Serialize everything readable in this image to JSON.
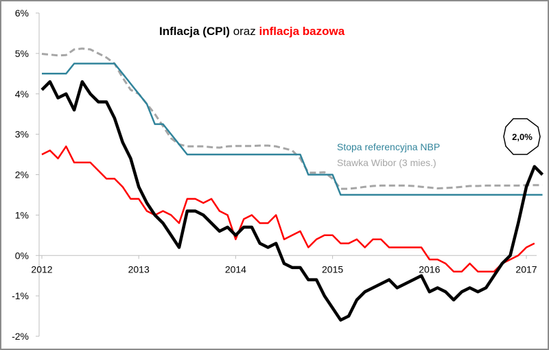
{
  "chart_data": {
    "type": "line",
    "title": {
      "part1": "Inflacja (CPI)",
      "part2": " oraz ",
      "part3": "inflacja bazowa",
      "part1_color": "#000000",
      "part3_color": "#ff0000"
    },
    "xlabel": "",
    "ylabel": "",
    "ylim": [
      -2,
      6
    ],
    "yticks": [
      6,
      5,
      4,
      3,
      2,
      1,
      0,
      -1,
      -2
    ],
    "ytick_labels": [
      "6%",
      "5%",
      "4%",
      "3%",
      "2%",
      "1%",
      "0%",
      "-1%",
      "-2%"
    ],
    "xticks": [
      2012,
      2013,
      2014,
      2015,
      2016,
      2017
    ],
    "xtick_labels": [
      "2012",
      "2013",
      "2014",
      "2015",
      "2016",
      "2017"
    ],
    "x_start": "2012-01",
    "x_step": "month",
    "grid": false,
    "legend": [
      {
        "name": "Stopa referencyjna NBP",
        "color": "#31849b",
        "placement": "right"
      },
      {
        "name": "Stawka Wibor (3 mies.)",
        "color": "#a6a6a6",
        "placement": "right"
      }
    ],
    "annotation": {
      "text": "2,0%",
      "points_to": "CPI last value"
    },
    "series": [
      {
        "name": "Inflacja (CPI)",
        "color": "#000000",
        "style": "solid-thick",
        "values": [
          4.1,
          4.3,
          3.9,
          4.0,
          3.6,
          4.3,
          4.0,
          3.8,
          3.8,
          3.4,
          2.8,
          2.4,
          1.7,
          1.3,
          1.0,
          0.8,
          0.5,
          0.2,
          1.1,
          1.1,
          1.0,
          0.8,
          0.6,
          0.7,
          0.5,
          0.7,
          0.7,
          0.3,
          0.2,
          0.3,
          -0.2,
          -0.3,
          -0.3,
          -0.6,
          -0.6,
          -1.0,
          -1.3,
          -1.6,
          -1.5,
          -1.1,
          -0.9,
          -0.8,
          -0.7,
          -0.6,
          -0.8,
          -0.7,
          -0.6,
          -0.5,
          -0.9,
          -0.8,
          -0.9,
          -1.1,
          -0.9,
          -0.8,
          -0.9,
          -0.8,
          -0.5,
          -0.2,
          0.0,
          0.8,
          1.7,
          2.2,
          2.0
        ]
      },
      {
        "name": "Inflacja bazowa",
        "color": "#ff0000",
        "style": "solid",
        "values": [
          2.5,
          2.6,
          2.4,
          2.7,
          2.3,
          2.3,
          2.3,
          2.1,
          1.9,
          1.9,
          1.7,
          1.4,
          1.4,
          1.1,
          1.0,
          1.1,
          1.0,
          0.8,
          1.4,
          1.4,
          1.3,
          1.4,
          1.1,
          1.0,
          0.4,
          0.9,
          1.0,
          0.8,
          0.8,
          1.0,
          0.4,
          0.5,
          0.6,
          0.2,
          0.4,
          0.5,
          0.5,
          0.3,
          0.3,
          0.4,
          0.2,
          0.4,
          0.4,
          0.2,
          0.2,
          0.2,
          0.2,
          0.2,
          -0.1,
          -0.1,
          -0.2,
          -0.4,
          -0.4,
          -0.2,
          -0.4,
          -0.4,
          -0.4,
          -0.2,
          -0.1,
          0.0,
          0.2,
          0.3
        ]
      },
      {
        "name": "Stopa referencyjna NBP",
        "color": "#31849b",
        "style": "solid",
        "values": [
          4.5,
          4.5,
          4.5,
          4.5,
          4.75,
          4.75,
          4.75,
          4.75,
          4.75,
          4.75,
          4.5,
          4.25,
          4.0,
          3.75,
          3.25,
          3.25,
          3.0,
          2.75,
          2.5,
          2.5,
          2.5,
          2.5,
          2.5,
          2.5,
          2.5,
          2.5,
          2.5,
          2.5,
          2.5,
          2.5,
          2.5,
          2.5,
          2.5,
          2.0,
          2.0,
          2.0,
          2.0,
          1.5,
          1.5,
          1.5,
          1.5,
          1.5,
          1.5,
          1.5,
          1.5,
          1.5,
          1.5,
          1.5,
          1.5,
          1.5,
          1.5,
          1.5,
          1.5,
          1.5,
          1.5,
          1.5,
          1.5,
          1.5,
          1.5,
          1.5,
          1.5,
          1.5,
          1.5
        ]
      },
      {
        "name": "Stawka Wibor (3 mies.)",
        "color": "#a6a6a6",
        "style": "dashed",
        "values": [
          4.99,
          4.97,
          4.95,
          4.96,
          5.1,
          5.12,
          5.1,
          5.0,
          4.9,
          4.75,
          4.4,
          4.1,
          4.0,
          3.75,
          3.5,
          3.2,
          2.9,
          2.75,
          2.7,
          2.7,
          2.7,
          2.68,
          2.67,
          2.7,
          2.71,
          2.71,
          2.71,
          2.72,
          2.72,
          2.7,
          2.65,
          2.6,
          2.4,
          2.05,
          2.05,
          2.06,
          1.9,
          1.65,
          1.65,
          1.67,
          1.7,
          1.72,
          1.73,
          1.73,
          1.73,
          1.73,
          1.72,
          1.7,
          1.68,
          1.66,
          1.67,
          1.68,
          1.7,
          1.72,
          1.72,
          1.73,
          1.73,
          1.73,
          1.73,
          1.73,
          1.74,
          1.74,
          1.74
        ]
      }
    ]
  }
}
